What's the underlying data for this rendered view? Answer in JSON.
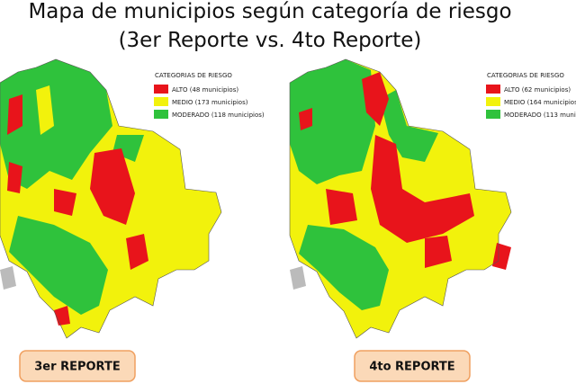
{
  "title": {
    "line1": "Mapa de municipios según categoría de riesgo",
    "line2": "(3er Reporte vs. 4to Reporte)"
  },
  "panels": [
    {
      "legend": {
        "title": "CATEGORIAS DE RIESGO",
        "items": [
          {
            "label": "ALTO (48 municipios)",
            "color": "#e8141b"
          },
          {
            "label": "MEDIO (173 municipios)",
            "color": "#f2f20c"
          },
          {
            "label": "MODERADO (118 municipios)",
            "color": "#2fc23c"
          }
        ]
      },
      "label": "3er REPORTE"
    },
    {
      "legend": {
        "title": "CATEGORIAS DE RIESGO",
        "items": [
          {
            "label": "ALTO (62 municipios)",
            "color": "#e8141b"
          },
          {
            "label": "MEDIO (164 municipios)",
            "color": "#f2f20c"
          },
          {
            "label": "MODERADO (113 municipios)",
            "color": "#2fc23c"
          }
        ]
      },
      "label": "4to REPORTE"
    }
  ]
}
